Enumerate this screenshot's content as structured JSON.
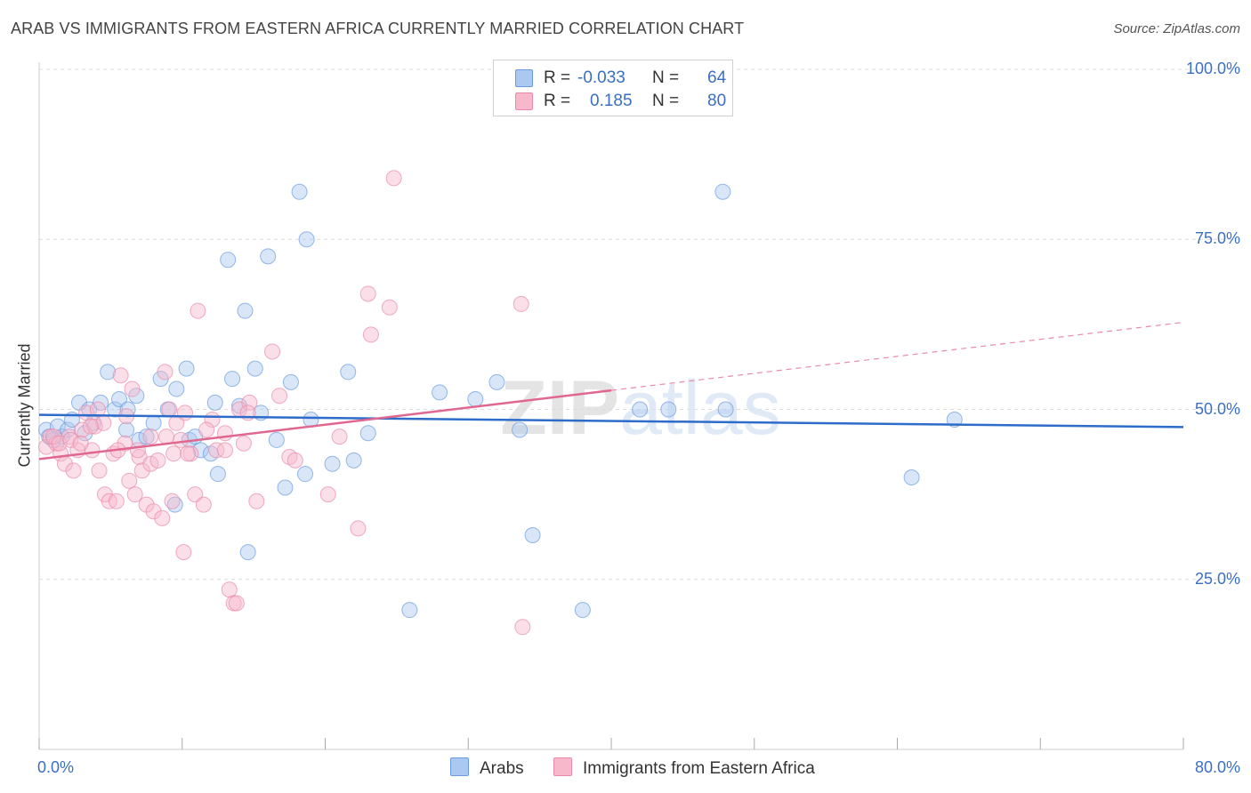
{
  "title": "ARAB VS IMMIGRANTS FROM EASTERN AFRICA CURRENTLY MARRIED CORRELATION CHART",
  "source": "Source: ZipAtlas.com",
  "watermark": "ZIPatlas",
  "legend": {
    "r_label": "R =",
    "n_label": "N =",
    "rows": [
      {
        "r": "-0.033",
        "n": "64",
        "color": "#aac8f0",
        "border": "#6b9be0"
      },
      {
        "r": "0.185",
        "n": "80",
        "color": "#f7b8cc",
        "border": "#e98aa8"
      }
    ]
  },
  "bottom_legend": [
    {
      "label": "Arabs",
      "color": "#aac8f0",
      "border": "#6b9be0"
    },
    {
      "label": "Immigrants from Eastern Africa",
      "color": "#f7b8cc",
      "border": "#e98aa8"
    }
  ],
  "chart_data": {
    "type": "scatter",
    "title": "ARAB VS IMMIGRANTS FROM EASTERN AFRICA CURRENTLY MARRIED CORRELATION CHART",
    "xlabel": "",
    "ylabel": "Currently Married",
    "xlim": [
      0,
      80
    ],
    "ylim": [
      0,
      105
    ],
    "x_tick_labels": [
      "0.0%",
      "80.0%"
    ],
    "y_ticks": [
      25,
      50,
      75,
      100
    ],
    "y_tick_labels": [
      "25.0%",
      "50.0%",
      "75.0%",
      "100.0%"
    ],
    "grid": true,
    "series": [
      {
        "name": "Arabs",
        "color": "#6b9be0",
        "fill": "#aac8f0",
        "trend": {
          "x": [
            0,
            80
          ],
          "y": [
            49.2,
            47.4
          ],
          "dashed_from": null
        },
        "points": [
          [
            0.5,
            47
          ],
          [
            0.7,
            46
          ],
          [
            1.0,
            45.5
          ],
          [
            1.3,
            47.5
          ],
          [
            1.6,
            46
          ],
          [
            2.0,
            47
          ],
          [
            2.3,
            48.5
          ],
          [
            2.8,
            51
          ],
          [
            3.2,
            46.5
          ],
          [
            3.5,
            50
          ],
          [
            3.8,
            48
          ],
          [
            4.3,
            51
          ],
          [
            4.8,
            55.5
          ],
          [
            5.3,
            50
          ],
          [
            5.6,
            51.5
          ],
          [
            6.2,
            50
          ],
          [
            6.8,
            52
          ],
          [
            6.1,
            47
          ],
          [
            7.0,
            45.5
          ],
          [
            7.5,
            46
          ],
          [
            8.0,
            48
          ],
          [
            8.5,
            54.5
          ],
          [
            9.0,
            50
          ],
          [
            9.6,
            53
          ],
          [
            10.3,
            56
          ],
          [
            10.5,
            45.5
          ],
          [
            10.9,
            46
          ],
          [
            11.3,
            44
          ],
          [
            12.0,
            43.5
          ],
          [
            12.5,
            40.5
          ],
          [
            12.3,
            51
          ],
          [
            13.2,
            72
          ],
          [
            13.5,
            54.5
          ],
          [
            14.0,
            50.5
          ],
          [
            14.4,
            64.5
          ],
          [
            15.1,
            56
          ],
          [
            15.5,
            49.5
          ],
          [
            16.0,
            72.5
          ],
          [
            16.6,
            45.5
          ],
          [
            17.2,
            38.5
          ],
          [
            17.6,
            54
          ],
          [
            18.2,
            82
          ],
          [
            18.6,
            40.5
          ],
          [
            18.7,
            75
          ],
          [
            19.0,
            48.5
          ],
          [
            20.5,
            42
          ],
          [
            21.6,
            55.5
          ],
          [
            22.0,
            42.5
          ],
          [
            23.0,
            46.5
          ],
          [
            25.9,
            20.5
          ],
          [
            28.0,
            52.5
          ],
          [
            30.5,
            51.5
          ],
          [
            32.0,
            54
          ],
          [
            33.6,
            47
          ],
          [
            34.5,
            31.5
          ],
          [
            38.0,
            20.5
          ],
          [
            42.0,
            50
          ],
          [
            44.0,
            50
          ],
          [
            47.8,
            82
          ],
          [
            48.0,
            50
          ],
          [
            61.0,
            40
          ],
          [
            64.0,
            48.5
          ],
          [
            9.5,
            36
          ],
          [
            14.6,
            29
          ]
        ]
      },
      {
        "name": "Immigrants from Eastern Africa",
        "color": "#e98aa8",
        "fill": "#f7b8cc",
        "trend": {
          "x": [
            0,
            40
          ],
          "y": [
            42.7,
            52.8
          ],
          "dashed_from": 40,
          "dashed_to": [
            80,
            62.8
          ]
        },
        "points": [
          [
            0.5,
            44.5
          ],
          [
            0.8,
            46
          ],
          [
            1.2,
            45
          ],
          [
            1.5,
            43.5
          ],
          [
            1.8,
            42
          ],
          [
            2.1,
            46
          ],
          [
            2.4,
            41
          ],
          [
            2.7,
            44
          ],
          [
            3.0,
            47
          ],
          [
            3.3,
            49.5
          ],
          [
            3.7,
            44
          ],
          [
            3.9,
            47.5
          ],
          [
            4.2,
            41
          ],
          [
            4.5,
            48
          ],
          [
            4.6,
            37.5
          ],
          [
            4.9,
            36.5
          ],
          [
            5.2,
            43.5
          ],
          [
            5.4,
            36.5
          ],
          [
            5.7,
            55
          ],
          [
            6.0,
            45
          ],
          [
            6.3,
            39.5
          ],
          [
            6.5,
            53
          ],
          [
            6.7,
            37.5
          ],
          [
            7.0,
            43
          ],
          [
            7.2,
            41
          ],
          [
            7.5,
            36
          ],
          [
            7.8,
            42
          ],
          [
            8.0,
            35
          ],
          [
            8.3,
            42.5
          ],
          [
            8.6,
            34
          ],
          [
            8.8,
            55.5
          ],
          [
            9.1,
            50
          ],
          [
            9.3,
            36.5
          ],
          [
            9.6,
            48
          ],
          [
            9.9,
            45.5
          ],
          [
            10.2,
            49.5
          ],
          [
            10.6,
            43.5
          ],
          [
            10.9,
            37.5
          ],
          [
            11.1,
            64.5
          ],
          [
            11.5,
            36
          ],
          [
            12.1,
            48.5
          ],
          [
            12.4,
            44
          ],
          [
            13.0,
            46.5
          ],
          [
            13.3,
            23.5
          ],
          [
            13.6,
            21.5
          ],
          [
            14.0,
            50
          ],
          [
            14.3,
            45
          ],
          [
            14.7,
            51
          ],
          [
            15.2,
            36.5
          ],
          [
            16.3,
            58.5
          ],
          [
            16.8,
            52
          ],
          [
            17.5,
            43
          ],
          [
            17.9,
            42.5
          ],
          [
            10.1,
            29
          ],
          [
            13.8,
            21.5
          ],
          [
            20.2,
            37.5
          ],
          [
            21.0,
            46
          ],
          [
            22.3,
            32.5
          ],
          [
            23.0,
            67
          ],
          [
            23.2,
            61
          ],
          [
            24.5,
            65
          ],
          [
            24.8,
            84
          ],
          [
            33.7,
            65.5
          ],
          [
            33.8,
            18
          ],
          [
            1.0,
            46
          ],
          [
            1.4,
            45
          ],
          [
            2.2,
            45.5
          ],
          [
            3.6,
            47.5
          ],
          [
            4.1,
            50
          ],
          [
            5.5,
            44
          ],
          [
            6.9,
            44
          ],
          [
            7.8,
            46
          ],
          [
            8.9,
            46
          ],
          [
            9.4,
            43.5
          ],
          [
            10.4,
            43.5
          ],
          [
            11.7,
            47
          ],
          [
            13.0,
            44
          ],
          [
            14.6,
            49.5
          ],
          [
            6.1,
            49
          ],
          [
            2.9,
            45
          ]
        ]
      }
    ]
  }
}
